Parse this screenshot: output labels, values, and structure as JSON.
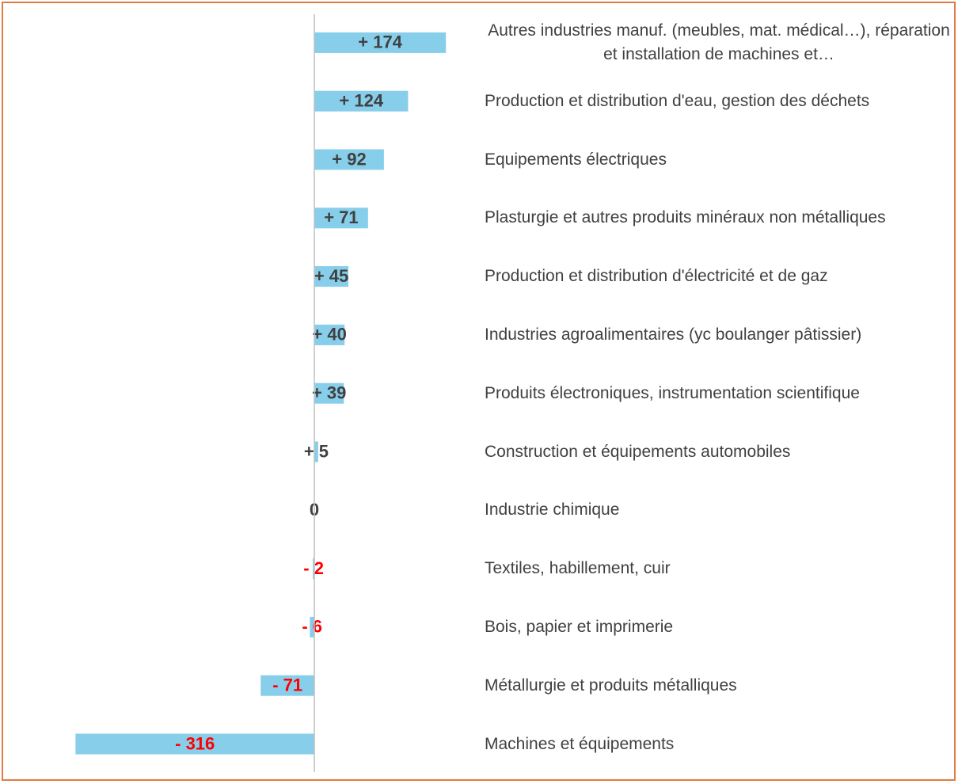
{
  "chart_data": {
    "type": "bar",
    "orientation": "horizontal",
    "categories": [
      "Autres industries manuf. (meubles, mat. médical…), réparation et installation de machines et…",
      "Production et distribution d'eau, gestion des déchets",
      "Equipements électriques",
      "Plasturgie et autres produits minéraux non métalliques",
      "Production et distribution d'électricité et de gaz",
      "Industries agroalimentaires (yc boulanger pâtissier)",
      "Produits électroniques, instrumentation scientifique",
      "Construction et équipements automobiles",
      "Industrie chimique",
      "Textiles, habillement, cuir",
      "Bois, papier et imprimerie",
      "Métallurgie et produits métalliques",
      "Machines et équipements"
    ],
    "values": [
      174,
      124,
      92,
      71,
      45,
      40,
      39,
      5,
      0,
      -2,
      -6,
      -71,
      -316
    ],
    "value_labels": [
      "+ 174",
      "+ 124",
      "+ 92",
      "+ 71",
      "+ 45",
      "+ 40",
      "+ 39",
      "+ 5",
      "0",
      "- 2",
      "- 6",
      "- 71",
      "- 316"
    ],
    "color": "#87CEEB",
    "positive_label_color": "#404040",
    "negative_label_color": "#FF0000",
    "xlim": [
      -330,
      200
    ]
  }
}
